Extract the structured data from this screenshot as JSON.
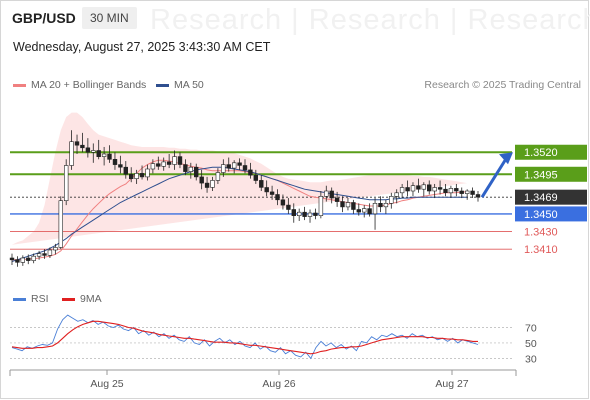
{
  "header": {
    "symbol": "GBP/USD",
    "timeframe": "30 MIN",
    "datetime": "Wednesday, August 27, 2025 3:43:30 AM CET",
    "watermark": "Research | Research | Research",
    "copyright": "Research © 2025 Trading Central"
  },
  "legend": {
    "ma20_label": "MA 20 + Bollinger Bands",
    "ma50_label": "MA 50",
    "rsi_label": "RSI",
    "rsi_ma_label": "9MA"
  },
  "colors": {
    "green_level": "#5a9e1a",
    "blue_level": "#3a6fe0",
    "red_level": "#e05a5a",
    "current_price": "#333333",
    "bollinger_band": "#fde0e0",
    "ma20": "#f08080",
    "ma50": "#2f4f8f",
    "rsi": "#4a7fd6",
    "rsi_ma": "#e02020",
    "candle_up": "#ffffff",
    "candle_down": "#222222",
    "arrow": "#2f62c6"
  },
  "chart_data": [
    {
      "type": "candlestick",
      "title": "GBP/USD 30 MIN",
      "x_ticks": [
        "Aug 25",
        "Aug 26",
        "Aug 27"
      ],
      "y_range": [
        1.3375,
        1.356
      ],
      "levels": [
        {
          "value": "1.3520",
          "kind": "resistance",
          "color": "#5a9e1a"
        },
        {
          "value": "1.3495",
          "kind": "resistance",
          "color": "#5a9e1a"
        },
        {
          "value": "1.3469",
          "kind": "current",
          "color": "#333333"
        },
        {
          "value": "1.3450",
          "kind": "pivot",
          "color": "#3a6fe0"
        },
        {
          "value": "1.3430",
          "kind": "support",
          "color": "#e05a5a"
        },
        {
          "value": "1.3410",
          "kind": "support",
          "color": "#e05a5a"
        }
      ],
      "candles": [
        [
          1.34,
          1.3405,
          1.3392,
          1.3398
        ],
        [
          1.3398,
          1.3402,
          1.339,
          1.3395
        ],
        [
          1.3395,
          1.3403,
          1.3391,
          1.34
        ],
        [
          1.34,
          1.3404,
          1.3393,
          1.3397
        ],
        [
          1.3397,
          1.3405,
          1.3394,
          1.3402
        ],
        [
          1.3402,
          1.3408,
          1.3398,
          1.3405
        ],
        [
          1.3405,
          1.341,
          1.3399,
          1.3403
        ],
        [
          1.3403,
          1.3412,
          1.34,
          1.3409
        ],
        [
          1.3409,
          1.3416,
          1.3404,
          1.3412
        ],
        [
          1.3412,
          1.347,
          1.341,
          1.3465
        ],
        [
          1.3465,
          1.3512,
          1.346,
          1.3505
        ],
        [
          1.3505,
          1.3545,
          1.35,
          1.3532
        ],
        [
          1.3532,
          1.354,
          1.3518,
          1.3528
        ],
        [
          1.3528,
          1.3542,
          1.352,
          1.3525
        ],
        [
          1.3525,
          1.3536,
          1.3514,
          1.352
        ],
        [
          1.352,
          1.353,
          1.3508,
          1.3522
        ],
        [
          1.3522,
          1.3534,
          1.3512,
          1.3515
        ],
        [
          1.3515,
          1.3526,
          1.3505,
          1.3518
        ],
        [
          1.3518,
          1.3528,
          1.3508,
          1.3512
        ],
        [
          1.3512,
          1.352,
          1.35,
          1.3506
        ],
        [
          1.3506,
          1.3516,
          1.3496,
          1.3503
        ],
        [
          1.3503,
          1.351,
          1.349,
          1.3495
        ],
        [
          1.3495,
          1.3503,
          1.3486,
          1.349
        ],
        [
          1.349,
          1.35,
          1.3484,
          1.3496
        ],
        [
          1.3496,
          1.3505,
          1.3489,
          1.3492
        ],
        [
          1.3492,
          1.3506,
          1.3488,
          1.3501
        ],
        [
          1.3501,
          1.3512,
          1.3496,
          1.3507
        ],
        [
          1.3507,
          1.3515,
          1.35,
          1.3504
        ],
        [
          1.3504,
          1.3514,
          1.3499,
          1.3509
        ],
        [
          1.3509,
          1.3518,
          1.3502,
          1.3506
        ],
        [
          1.3506,
          1.3522,
          1.35,
          1.3515
        ],
        [
          1.3515,
          1.352,
          1.3502,
          1.3506
        ],
        [
          1.3506,
          1.3512,
          1.3494,
          1.3498
        ],
        [
          1.3498,
          1.3508,
          1.349,
          1.3503
        ],
        [
          1.3503,
          1.3507,
          1.3488,
          1.3492
        ],
        [
          1.3492,
          1.35,
          1.3478,
          1.3485
        ],
        [
          1.3485,
          1.3492,
          1.3474,
          1.348
        ],
        [
          1.348,
          1.3492,
          1.3476,
          1.3488
        ],
        [
          1.3488,
          1.3502,
          1.3484,
          1.3497
        ],
        [
          1.3497,
          1.3512,
          1.3492,
          1.3506
        ],
        [
          1.3506,
          1.3514,
          1.3498,
          1.3502
        ],
        [
          1.3502,
          1.3511,
          1.3496,
          1.3508
        ],
        [
          1.3508,
          1.3513,
          1.35,
          1.3505
        ],
        [
          1.3505,
          1.3512,
          1.3496,
          1.35
        ],
        [
          1.35,
          1.3508,
          1.349,
          1.3494
        ],
        [
          1.3494,
          1.35,
          1.3484,
          1.3488
        ],
        [
          1.3488,
          1.3494,
          1.3476,
          1.348
        ],
        [
          1.348,
          1.3488,
          1.347,
          1.3475
        ],
        [
          1.3475,
          1.3482,
          1.3466,
          1.3472
        ],
        [
          1.3472,
          1.3478,
          1.346,
          1.3466
        ],
        [
          1.3466,
          1.3472,
          1.3455,
          1.346
        ],
        [
          1.346,
          1.3468,
          1.345,
          1.3455
        ],
        [
          1.3455,
          1.3462,
          1.344,
          1.3448
        ],
        [
          1.3448,
          1.3456,
          1.3442,
          1.3452
        ],
        [
          1.3452,
          1.3458,
          1.3443,
          1.3447
        ],
        [
          1.3447,
          1.3455,
          1.344,
          1.3451
        ],
        [
          1.3451,
          1.3456,
          1.3444,
          1.3448
        ],
        [
          1.3448,
          1.3476,
          1.3445,
          1.347
        ],
        [
          1.347,
          1.3482,
          1.3464,
          1.3476
        ],
        [
          1.3476,
          1.348,
          1.3462,
          1.3468
        ],
        [
          1.3468,
          1.3475,
          1.3458,
          1.3464
        ],
        [
          1.3464,
          1.347,
          1.3452,
          1.3458
        ],
        [
          1.3458,
          1.3468,
          1.3454,
          1.3463
        ],
        [
          1.3463,
          1.3466,
          1.345,
          1.3455
        ],
        [
          1.3455,
          1.3462,
          1.3448,
          1.3452
        ],
        [
          1.3452,
          1.346,
          1.3446,
          1.3456
        ],
        [
          1.3456,
          1.3462,
          1.3447,
          1.345
        ],
        [
          1.345,
          1.3468,
          1.3432,
          1.3462
        ],
        [
          1.3462,
          1.347,
          1.3452,
          1.3458
        ],
        [
          1.3458,
          1.3466,
          1.345,
          1.3462
        ],
        [
          1.3462,
          1.3474,
          1.3456,
          1.347
        ],
        [
          1.347,
          1.3478,
          1.3462,
          1.3474
        ],
        [
          1.3474,
          1.3484,
          1.3468,
          1.348
        ],
        [
          1.348,
          1.3488,
          1.347,
          1.3476
        ],
        [
          1.3476,
          1.3486,
          1.347,
          1.3482
        ],
        [
          1.3482,
          1.349,
          1.3474,
          1.3478
        ],
        [
          1.3478,
          1.3486,
          1.347,
          1.3483
        ],
        [
          1.3483,
          1.3488,
          1.3472,
          1.3476
        ],
        [
          1.3476,
          1.3484,
          1.3468,
          1.348
        ],
        [
          1.348,
          1.3488,
          1.3472,
          1.3478
        ],
        [
          1.3478,
          1.3484,
          1.347,
          1.3474
        ],
        [
          1.3474,
          1.3482,
          1.3468,
          1.3479
        ],
        [
          1.3479,
          1.3484,
          1.347,
          1.3476
        ],
        [
          1.3476,
          1.348,
          1.3468,
          1.3473
        ],
        [
          1.3473,
          1.3478,
          1.3466,
          1.3476
        ],
        [
          1.3476,
          1.348,
          1.3468,
          1.3472
        ],
        [
          1.3472,
          1.3476,
          1.3464,
          1.3469
        ]
      ],
      "ma20": [
        1.3398,
        1.3398,
        1.3398,
        1.3399,
        1.3399,
        1.34,
        1.3401,
        1.3402,
        1.3404,
        1.3408,
        1.3416,
        1.3425,
        1.3433,
        1.3441,
        1.3449,
        1.3456,
        1.3462,
        1.3468,
        1.3473,
        1.3477,
        1.3481,
        1.3484,
        1.349,
        1.3496,
        1.3502,
        1.3506,
        1.3509,
        1.3511,
        1.3511,
        1.351,
        1.3509,
        1.3507,
        1.3506,
        1.3504,
        1.3503,
        1.3502,
        1.35,
        1.3499,
        1.3499,
        1.3499,
        1.3499,
        1.3499,
        1.3499,
        1.3498,
        1.3497,
        1.3496,
        1.3494,
        1.3492,
        1.349,
        1.3488,
        1.3485,
        1.3482,
        1.3479,
        1.3476,
        1.3473,
        1.347,
        1.3469,
        1.3468,
        1.3467,
        1.3466,
        1.3465,
        1.3464,
        1.3463,
        1.3462,
        1.3461,
        1.346,
        1.3459,
        1.3459,
        1.3459,
        1.346,
        1.3462,
        1.3463,
        1.3465,
        1.3466,
        1.3468,
        1.3469,
        1.347,
        1.3471,
        1.3472,
        1.3473,
        1.3474,
        1.3474,
        1.3474,
        1.3475,
        1.3475
      ],
      "bb_upper": [
        1.3415,
        1.3418,
        1.342,
        1.3425,
        1.343,
        1.344,
        1.346,
        1.349,
        1.352,
        1.3545,
        1.356,
        1.3565,
        1.3565,
        1.356,
        1.3552,
        1.3545,
        1.354,
        1.3538,
        1.3536,
        1.3534,
        1.3532,
        1.353,
        1.3528,
        1.3527,
        1.3526,
        1.3526,
        1.3526,
        1.3526,
        1.3526,
        1.3525,
        1.3525,
        1.3524,
        1.3524,
        1.3523,
        1.3523,
        1.3522,
        1.3522,
        1.3522,
        1.3521,
        1.3521,
        1.352,
        1.3519,
        1.3517,
        1.3515,
        1.3513,
        1.351,
        1.3507,
        1.3503,
        1.3499,
        1.3495,
        1.3492,
        1.349,
        1.3489,
        1.3488,
        1.3487,
        1.3486,
        1.3486,
        1.3486,
        1.3487,
        1.3488,
        1.3488,
        1.3489,
        1.349,
        1.3491,
        1.3492,
        1.3493,
        1.3494,
        1.3494,
        1.3494,
        1.3494,
        1.3494,
        1.3494,
        1.3494,
        1.3494,
        1.3493,
        1.3493,
        1.3492,
        1.3492,
        1.3491,
        1.349,
        1.3489,
        1.3488,
        1.3487,
        1.3486,
        1.3485
      ],
      "bb_lower": [
        1.3386,
        1.3385,
        1.3384,
        1.3383,
        1.3382,
        1.338,
        1.3378,
        1.3376,
        1.3378,
        1.3382,
        1.3388,
        1.3394,
        1.34,
        1.3408,
        1.3418,
        1.343,
        1.3442,
        1.3454,
        1.3464,
        1.3472,
        1.3478,
        1.3482,
        1.3484,
        1.3486,
        1.3487,
        1.3488,
        1.3488,
        1.3487,
        1.3486,
        1.3485,
        1.3484,
        1.3483,
        1.3482,
        1.3481,
        1.348,
        1.3479,
        1.3478,
        1.3477,
        1.3476,
        1.3475,
        1.3472,
        1.3469,
        1.3465,
        1.346,
        1.3455,
        1.345,
        1.3446,
        1.3443,
        1.3441,
        1.344,
        1.344,
        1.3441,
        1.3442,
        1.3443,
        1.3444,
        1.3445,
        1.3446,
        1.3446,
        1.3447,
        1.3447,
        1.3448,
        1.3448,
        1.3449,
        1.3449,
        1.345,
        1.345,
        1.3451,
        1.3452,
        1.3453,
        1.3454,
        1.3455,
        1.3456,
        1.3457,
        1.3458,
        1.3459,
        1.346,
        1.3461,
        1.3462,
        1.3463,
        1.3463,
        1.3464,
        1.3464,
        1.3465,
        1.3465,
        1.3466
      ],
      "ma50": [
        1.3396,
        1.3398,
        1.34,
        1.3402,
        1.3404,
        1.3406,
        1.3408,
        1.3411,
        1.3414,
        1.3418,
        1.3422,
        1.3427,
        1.3431,
        1.3435,
        1.3439,
        1.3443,
        1.3447,
        1.3451,
        1.3455,
        1.3459,
        1.3463,
        1.3466,
        1.3469,
        1.3472,
        1.3475,
        1.3478,
        1.3481,
        1.3484,
        1.3487,
        1.349,
        1.3492,
        1.3494,
        1.3496,
        1.3498,
        1.35,
        1.3501,
        1.3502,
        1.3503,
        1.3503,
        1.3503,
        1.3502,
        1.3501,
        1.35,
        1.3499,
        1.3498,
        1.3496,
        1.3494,
        1.3492,
        1.349,
        1.3488,
        1.3486,
        1.3484,
        1.3482,
        1.348,
        1.3478,
        1.3477,
        1.3476,
        1.3475,
        1.3474,
        1.3473,
        1.3472,
        1.3471,
        1.347,
        1.3469,
        1.3468,
        1.3467,
        1.3466,
        1.3466,
        1.3466,
        1.3466,
        1.3467,
        1.3467,
        1.3468,
        1.3468,
        1.3469,
        1.3469,
        1.3469,
        1.3469,
        1.3469,
        1.3469,
        1.3469,
        1.3469,
        1.3469,
        1.3469,
        1.3469
      ]
    },
    {
      "type": "line",
      "title": "RSI",
      "y_range": [
        15,
        90
      ],
      "y_ticks": [
        "70",
        "50",
        "30"
      ],
      "series": [
        {
          "name": "RSI",
          "values": [
            44,
            42,
            40,
            45,
            43,
            46,
            48,
            47,
            50,
            68,
            80,
            86,
            82,
            78,
            80,
            76,
            79,
            74,
            77,
            72,
            70,
            73,
            68,
            66,
            70,
            62,
            66,
            60,
            64,
            58,
            62,
            56,
            60,
            54,
            52,
            58,
            50,
            48,
            54,
            46,
            52,
            56,
            50,
            54,
            48,
            52,
            46,
            44,
            50,
            42,
            46,
            40,
            38,
            44,
            36,
            40,
            34,
            32,
            38,
            30,
            44,
            52,
            46,
            50,
            44,
            48,
            42,
            46,
            40,
            52,
            50,
            58,
            54,
            60,
            58,
            62,
            58,
            60,
            56,
            62,
            58,
            60,
            56,
            58,
            54,
            56,
            52,
            56,
            50,
            54,
            52,
            50,
            48
          ]
        },
        {
          "name": "9MA",
          "values": [
            45,
            44,
            43,
            43,
            43,
            44,
            44,
            45,
            46,
            50,
            56,
            62,
            67,
            71,
            74,
            76,
            78,
            78,
            77,
            76,
            75,
            74,
            72,
            70,
            69,
            67,
            65,
            64,
            63,
            61,
            60,
            59,
            58,
            57,
            56,
            56,
            55,
            54,
            53,
            52,
            51,
            51,
            51,
            50,
            50,
            49,
            48,
            47,
            47,
            46,
            45,
            44,
            43,
            42,
            41,
            40,
            39,
            38,
            37,
            36,
            37,
            39,
            40,
            42,
            43,
            44,
            44,
            45,
            45,
            46,
            48,
            50,
            52,
            54,
            55,
            56,
            57,
            58,
            58,
            58,
            58,
            58,
            57,
            57,
            56,
            56,
            55,
            55,
            54,
            54,
            53,
            52,
            52
          ]
        }
      ]
    }
  ]
}
